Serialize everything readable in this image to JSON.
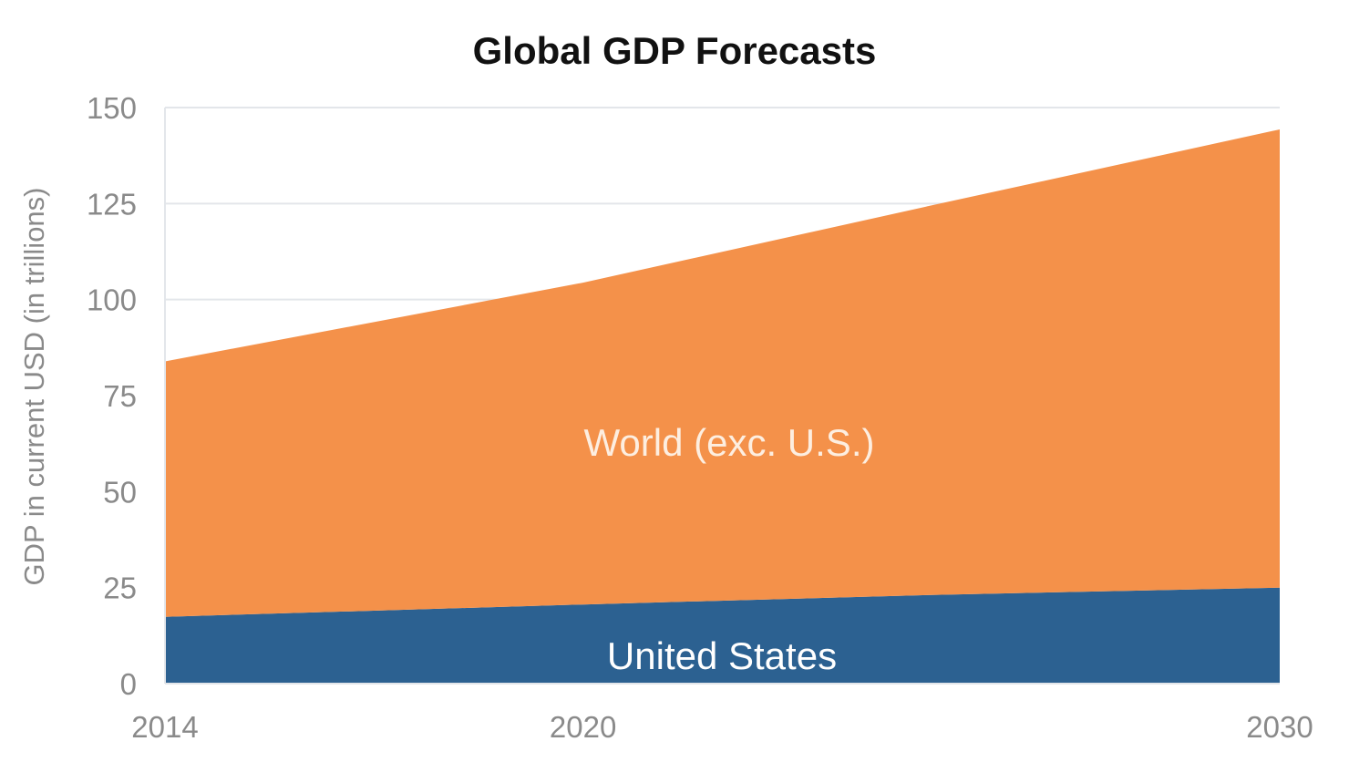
{
  "chart_data": {
    "type": "area",
    "stacked": true,
    "title": "Global GDP Forecasts",
    "xlabel": "",
    "ylabel": "GDP in current USD (in trillions)",
    "x": [
      2014,
      2020,
      2025,
      2030
    ],
    "x_ticks": [
      "2014",
      "2020",
      "2030"
    ],
    "ylim": [
      0,
      150
    ],
    "y_ticks": [
      "0",
      "25",
      "50",
      "75",
      "100",
      "125",
      "150"
    ],
    "grid": true,
    "series": [
      {
        "name": "United States",
        "values": [
          17.4,
          20.6,
          23.1,
          25.0
        ],
        "color": "#2c6191",
        "label_color": "#ffffff"
      },
      {
        "name": "World (exc. U.S.)",
        "values": [
          66.5,
          83.8,
          101.4,
          119.3
        ],
        "color": "#f4914a",
        "label_color": "#fdeee0"
      }
    ]
  }
}
